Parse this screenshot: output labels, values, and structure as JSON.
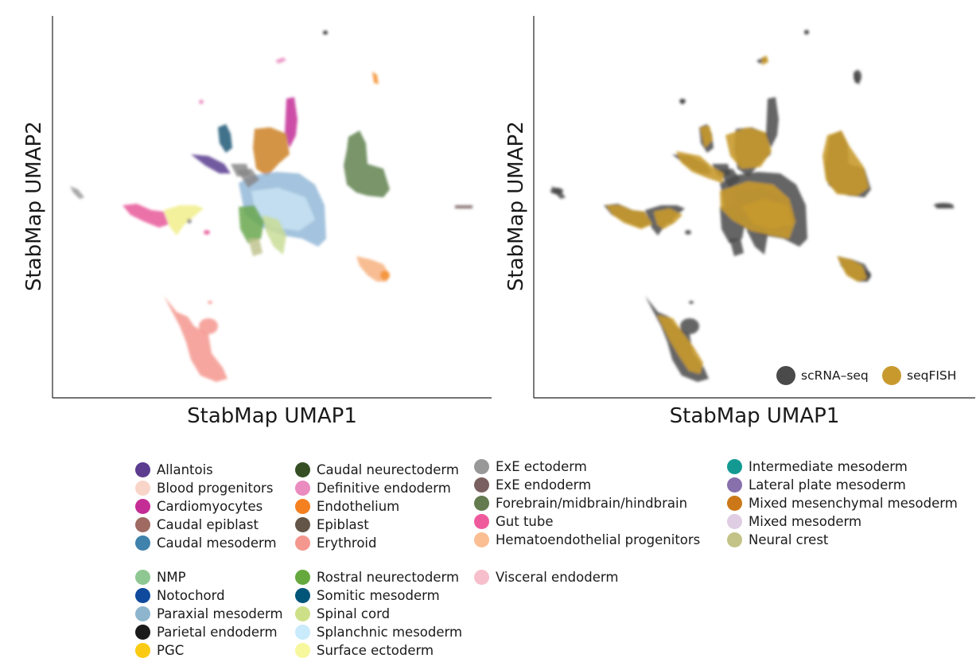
{
  "chart_data": [
    {
      "type": "scatter",
      "panel": "left",
      "title": "",
      "xlabel": "StabMap UMAP1",
      "ylabel": "StabMap UMAP2",
      "color_by": "cell type",
      "axes": "left and bottom spines only, no ticks",
      "clusters": [
        {
          "label": "Erythroid",
          "color": "#f4978e",
          "x": 2.9,
          "y": 1.2
        },
        {
          "label": "Gut tube",
          "color": "#e85a9a",
          "x": 2.3,
          "y": 4.7
        },
        {
          "label": "Surface ectoderm",
          "color": "#f1ef8a",
          "x": 3.1,
          "y": 4.6
        },
        {
          "label": "ExE ectoderm",
          "color": "#9a9a9a",
          "x": 0.6,
          "y": 5.4
        },
        {
          "label": "ExE endoderm",
          "color": "#7a6060",
          "x": 9.7,
          "y": 5.0
        },
        {
          "label": "Forebrain/midbrain/hindbrain",
          "color": "#60824f",
          "x": 7.5,
          "y": 6.1
        },
        {
          "label": "Hematoendothelial progenitors",
          "color": "#f7b27f",
          "x": 7.8,
          "y": 3.3
        },
        {
          "label": "Endothelium",
          "color": "#f59030",
          "x": 7.4,
          "y": 8.4
        },
        {
          "label": "Cardiomyocytes",
          "color": "#c42d96",
          "x": 5.4,
          "y": 7.4
        },
        {
          "label": "Definitive endoderm",
          "color": "#ea8cc0",
          "x": 4.8,
          "y": 9.0
        },
        {
          "label": "Parietal endoderm",
          "color": "#1a1a1a",
          "x": 6.3,
          "y": 9.6
        },
        {
          "label": "Somitic mesoderm",
          "color": "#1f5a77",
          "x": 3.9,
          "y": 6.8
        },
        {
          "label": "Allantois",
          "color": "#5b3c8f",
          "x": 3.4,
          "y": 6.0
        },
        {
          "label": "Mixed mesenchymal mesoderm",
          "color": "#cc8125",
          "x": 4.9,
          "y": 6.6
        },
        {
          "label": "Paraxial mesoderm",
          "color": "#94b9d8",
          "x": 6.0,
          "y": 4.5
        },
        {
          "label": "Splanchnic mesoderm",
          "color": "#c8e4f3",
          "x": 5.6,
          "y": 5.0
        },
        {
          "label": "Rostral neurectoderm",
          "color": "#6aa84f",
          "x": 5.0,
          "y": 4.2
        },
        {
          "label": "Spinal cord",
          "color": "#c9dd96",
          "x": 5.4,
          "y": 3.8
        },
        {
          "label": "Neural crest",
          "color": "#bfc38e",
          "x": 5.2,
          "y": 3.6
        }
      ]
    },
    {
      "type": "scatter",
      "panel": "right",
      "title": "",
      "xlabel": "StabMap UMAP1",
      "ylabel": "StabMap UMAP2",
      "color_by": "technology",
      "legend_placement": "bottom-right",
      "series": [
        {
          "name": "scRNA–seq",
          "color": "#4a4a4a"
        },
        {
          "name": "seqFISH",
          "color": "#c89a2e"
        }
      ]
    }
  ],
  "legend": {
    "groups": [
      [
        {
          "label": "Allantois",
          "color": "#5b3c8f"
        },
        {
          "label": "Blood progenitors",
          "color": "#f8d5c8"
        },
        {
          "label": "Cardiomyocytes",
          "color": "#c42d96"
        },
        {
          "label": "Caudal epiblast",
          "color": "#9e6a62"
        },
        {
          "label": "Caudal mesoderm",
          "color": "#3f82ac"
        }
      ],
      [
        {
          "label": "Caudal neurectoderm",
          "color": "#354e23"
        },
        {
          "label": "Definitive endoderm",
          "color": "#ea8cc0"
        },
        {
          "label": "Endothelium",
          "color": "#f58020"
        },
        {
          "label": "Epiblast",
          "color": "#635547"
        },
        {
          "label": "Erythroid",
          "color": "#f4978e"
        }
      ],
      [
        {
          "label": "ExE ectoderm",
          "color": "#989898"
        },
        {
          "label": "ExE endoderm",
          "color": "#7a6060"
        },
        {
          "label": "Forebrain/midbrain/hindbrain",
          "color": "#647a4f"
        },
        {
          "label": "Gut tube",
          "color": "#ef5a9d"
        },
        {
          "label": "Hematoendothelial progenitors",
          "color": "#fbbe92"
        }
      ],
      [
        {
          "label": "Intermediate mesoderm",
          "color": "#139992"
        },
        {
          "label": "Lateral plate mesoderm",
          "color": "#8870ad"
        },
        {
          "label": "Mixed mesenchymal mesoderm",
          "color": "#cc7818"
        },
        {
          "label": "Mixed mesoderm",
          "color": "#dfcde4"
        },
        {
          "label": "Neural crest",
          "color": "#c3c388"
        }
      ],
      [
        {
          "label": "NMP",
          "color": "#8ec792"
        },
        {
          "label": "Notochord",
          "color": "#0f4a9c"
        },
        {
          "label": "Paraxial mesoderm",
          "color": "#8db5ce"
        },
        {
          "label": "Parietal endoderm",
          "color": "#1a1a1a"
        },
        {
          "label": "PGC",
          "color": "#facb12"
        }
      ],
      [
        {
          "label": "Rostral neurectoderm",
          "color": "#65a83e"
        },
        {
          "label": "Somitic mesoderm",
          "color": "#005579"
        },
        {
          "label": "Spinal cord",
          "color": "#cde088"
        },
        {
          "label": "Splanchnic mesoderm",
          "color": "#c9ebfb"
        },
        {
          "label": "Surface ectoderm",
          "color": "#f7f79e"
        }
      ],
      [
        {
          "label": "Visceral endoderm",
          "color": "#f6bfcb"
        }
      ]
    ]
  }
}
